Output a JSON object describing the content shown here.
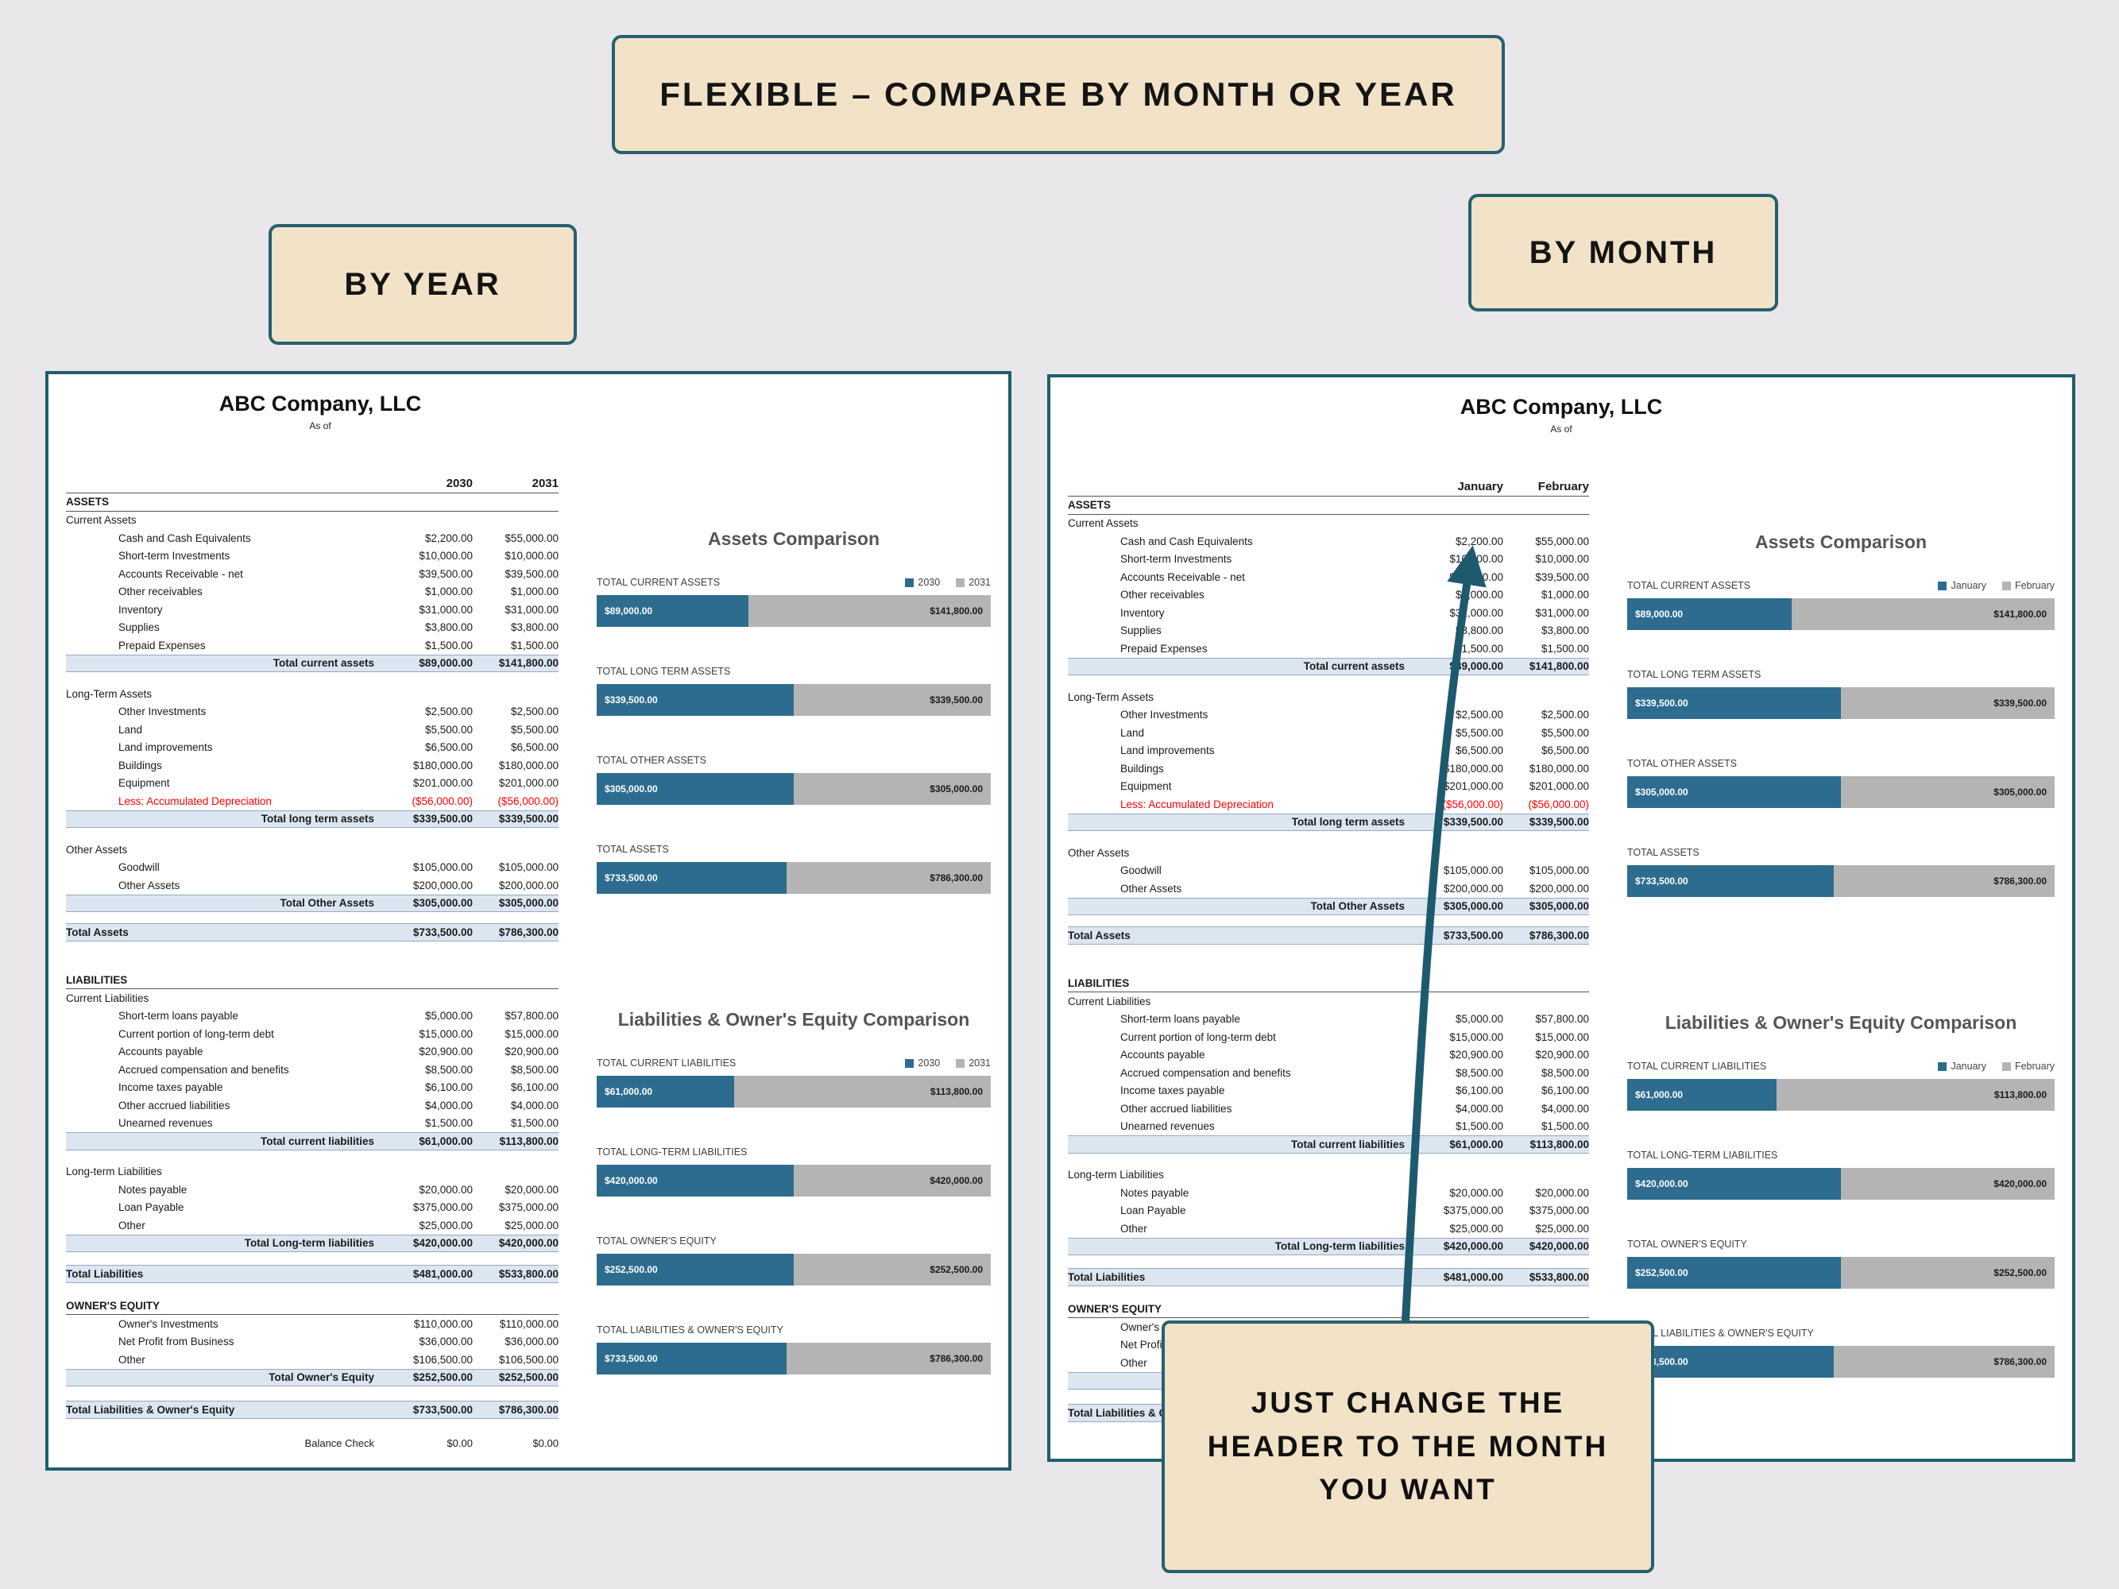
{
  "banner": {
    "title": "FLEXIBLE – COMPARE BY MONTH OR YEAR"
  },
  "labels": {
    "by_year": "BY YEAR",
    "by_month": "BY MONTH"
  },
  "callout": {
    "lines": [
      "JUST CHANGE THE",
      "HEADER TO THE MONTH",
      "YOU WANT"
    ]
  },
  "colors": {
    "accent_teal": "#26606f",
    "beige": "#f1e2c8",
    "page_bg": "#e9e7ea",
    "series1": "#2d6c8e",
    "series2": "#b4b4b4",
    "total_row_bg": "#dce6f1",
    "negative": "#ff0000"
  },
  "panels": [
    {
      "id": "by-year",
      "company": "ABC Company, LLC",
      "subtitle": "As of",
      "col1": "2030",
      "col2": "2031"
    },
    {
      "id": "by-month",
      "company": "ABC Company, LLC",
      "subtitle": "As of",
      "col1": "January",
      "col2": "February"
    }
  ],
  "sheet": {
    "rows": [
      {
        "type": "section",
        "label": "ASSETS"
      },
      {
        "type": "sub",
        "label": "Current Assets"
      },
      {
        "type": "item",
        "label": "Cash and Cash Equivalents",
        "v1": "$2,200.00",
        "v2": "$55,000.00"
      },
      {
        "type": "item",
        "label": "Short-term Investments",
        "v1": "$10,000.00",
        "v2": "$10,000.00"
      },
      {
        "type": "item",
        "label": "Accounts Receivable - net",
        "v1": "$39,500.00",
        "v2": "$39,500.00"
      },
      {
        "type": "item",
        "label": "Other receivables",
        "v1": "$1,000.00",
        "v2": "$1,000.00"
      },
      {
        "type": "item",
        "label": "Inventory",
        "v1": "$31,000.00",
        "v2": "$31,000.00"
      },
      {
        "type": "item",
        "label": "Supplies",
        "v1": "$3,800.00",
        "v2": "$3,800.00"
      },
      {
        "type": "item",
        "label": "Prepaid Expenses",
        "v1": "$1,500.00",
        "v2": "$1,500.00"
      },
      {
        "type": "total",
        "label": "Total current assets",
        "v1": "$89,000.00",
        "v2": "$141,800.00"
      },
      {
        "type": "spacer",
        "h": 16
      },
      {
        "type": "sub",
        "label": "Long-Term Assets"
      },
      {
        "type": "item",
        "label": "Other Investments",
        "v1": "$2,500.00",
        "v2": "$2,500.00"
      },
      {
        "type": "item",
        "label": "Land",
        "v1": "$5,500.00",
        "v2": "$5,500.00"
      },
      {
        "type": "item",
        "label": "Land improvements",
        "v1": "$6,500.00",
        "v2": "$6,500.00"
      },
      {
        "type": "item",
        "label": "Buildings",
        "v1": "$180,000.00",
        "v2": "$180,000.00"
      },
      {
        "type": "item",
        "label": "Equipment",
        "v1": "$201,000.00",
        "v2": "$201,000.00"
      },
      {
        "type": "item-neg",
        "label": "Less: Accumulated Depreciation",
        "v1": "($56,000.00)",
        "v2": "($56,000.00)"
      },
      {
        "type": "total",
        "label": "Total long term assets",
        "v1": "$339,500.00",
        "v2": "$339,500.00"
      },
      {
        "type": "spacer",
        "h": 16
      },
      {
        "type": "sub",
        "label": "Other Assets"
      },
      {
        "type": "item",
        "label": "Goodwill",
        "v1": "$105,000.00",
        "v2": "$105,000.00"
      },
      {
        "type": "item",
        "label": "Other Assets",
        "v1": "$200,000.00",
        "v2": "$200,000.00"
      },
      {
        "type": "total",
        "label": "Total Other Assets",
        "v1": "$305,000.00",
        "v2": "$305,000.00"
      },
      {
        "type": "spacer",
        "h": 14
      },
      {
        "type": "grand",
        "label": "Total Assets",
        "v1": "$733,500.00",
        "v2": "$786,300.00"
      },
      {
        "type": "spacer",
        "h": 38
      },
      {
        "type": "section",
        "label": "LIABILITIES"
      },
      {
        "type": "sub",
        "label": "Current Liabilities"
      },
      {
        "type": "item",
        "label": "Short-term loans payable",
        "v1": "$5,000.00",
        "v2": "$57,800.00"
      },
      {
        "type": "item",
        "label": "Current portion of long-term debt",
        "v1": "$15,000.00",
        "v2": "$15,000.00"
      },
      {
        "type": "item",
        "label": "Accounts payable",
        "v1": "$20,900.00",
        "v2": "$20,900.00"
      },
      {
        "type": "item",
        "label": "Accrued compensation and benefits",
        "v1": "$8,500.00",
        "v2": "$8,500.00"
      },
      {
        "type": "item",
        "label": "Income taxes payable",
        "v1": "$6,100.00",
        "v2": "$6,100.00"
      },
      {
        "type": "item",
        "label": "Other accrued liabilities",
        "v1": "$4,000.00",
        "v2": "$4,000.00"
      },
      {
        "type": "item",
        "label": "Unearned revenues",
        "v1": "$1,500.00",
        "v2": "$1,500.00"
      },
      {
        "type": "total",
        "label": "Total current liabilities",
        "v1": "$61,000.00",
        "v2": "$113,800.00"
      },
      {
        "type": "spacer",
        "h": 16
      },
      {
        "type": "sub",
        "label": "Long-term Liabilities"
      },
      {
        "type": "item",
        "label": "Notes payable",
        "v1": "$20,000.00",
        "v2": "$20,000.00"
      },
      {
        "type": "item",
        "label": "Loan Payable",
        "v1": "$375,000.00",
        "v2": "$375,000.00"
      },
      {
        "type": "item",
        "label": "Other",
        "v1": "$25,000.00",
        "v2": "$25,000.00"
      },
      {
        "type": "total",
        "label": "Total Long-term liabilities",
        "v1": "$420,000.00",
        "v2": "$420,000.00"
      },
      {
        "type": "spacer",
        "h": 16
      },
      {
        "type": "grand",
        "label": "Total Liabilities",
        "v1": "$481,000.00",
        "v2": "$533,800.00"
      },
      {
        "type": "spacer",
        "h": 18
      },
      {
        "type": "section",
        "label": "OWNER'S EQUITY"
      },
      {
        "type": "item",
        "label": "Owner's Investments",
        "v1": "$110,000.00",
        "v2": "$110,000.00"
      },
      {
        "type": "item",
        "label": "Net Profit from Business",
        "v1": "$36,000.00",
        "v2": "$36,000.00"
      },
      {
        "type": "item",
        "label": "Other",
        "v1": "$106,500.00",
        "v2": "$106,500.00"
      },
      {
        "type": "total",
        "label": "Total Owner's Equity",
        "v1": "$252,500.00",
        "v2": "$252,500.00"
      },
      {
        "type": "spacer",
        "h": 18
      },
      {
        "type": "grand",
        "label": "Total Liabilities & Owner's Equity",
        "v1": "$733,500.00",
        "v2": "$786,300.00"
      },
      {
        "type": "spacer",
        "h": 20
      },
      {
        "type": "check",
        "label": "Balance Check",
        "v1": "$0.00",
        "v2": "$0.00"
      }
    ]
  },
  "chart_data": [
    {
      "type": "bar",
      "variant": "stacked-horizontal-100",
      "title": "Assets Comparison",
      "legend_note": "series names come from the panel column headers (2030/2031 or January/February)",
      "legend_position": "top-right",
      "groups": [
        {
          "label": "TOTAL CURRENT ASSETS",
          "v1": 89000,
          "v2": 141800,
          "v1_label": "$89,000.00",
          "v2_label": "$141,800.00"
        },
        {
          "label": "TOTAL LONG TERM ASSETS",
          "v1": 339500,
          "v2": 339500,
          "v1_label": "$339,500.00",
          "v2_label": "$339,500.00"
        },
        {
          "label": "TOTAL OTHER ASSETS",
          "v1": 305000,
          "v2": 305000,
          "v1_label": "$305,000.00",
          "v2_label": "$305,000.00"
        },
        {
          "label": "TOTAL ASSETS",
          "v1": 733500,
          "v2": 786300,
          "v1_label": "$733,500.00",
          "v2_label": "$786,300.00"
        }
      ]
    },
    {
      "type": "bar",
      "variant": "stacked-horizontal-100",
      "title": "Liabilities & Owner's Equity Comparison",
      "legend_position": "top-right",
      "groups": [
        {
          "label": "TOTAL CURRENT LIABILITIES",
          "v1": 61000,
          "v2": 113800,
          "v1_label": "$61,000.00",
          "v2_label": "$113,800.00"
        },
        {
          "label": "TOTAL LONG-TERM LIABILITIES",
          "v1": 420000,
          "v2": 420000,
          "v1_label": "$420,000.00",
          "v2_label": "$420,000.00"
        },
        {
          "label": "TOTAL OWNER'S EQUITY",
          "v1": 252500,
          "v2": 252500,
          "v1_label": "$252,500.00",
          "v2_label": "$252,500.00"
        },
        {
          "label": "TOTAL LIABILITIES & OWNER'S EQUITY",
          "v1": 733500,
          "v2": 786300,
          "v1_label": "$733,500.00",
          "v2_label": "$786,300.00"
        }
      ]
    }
  ]
}
